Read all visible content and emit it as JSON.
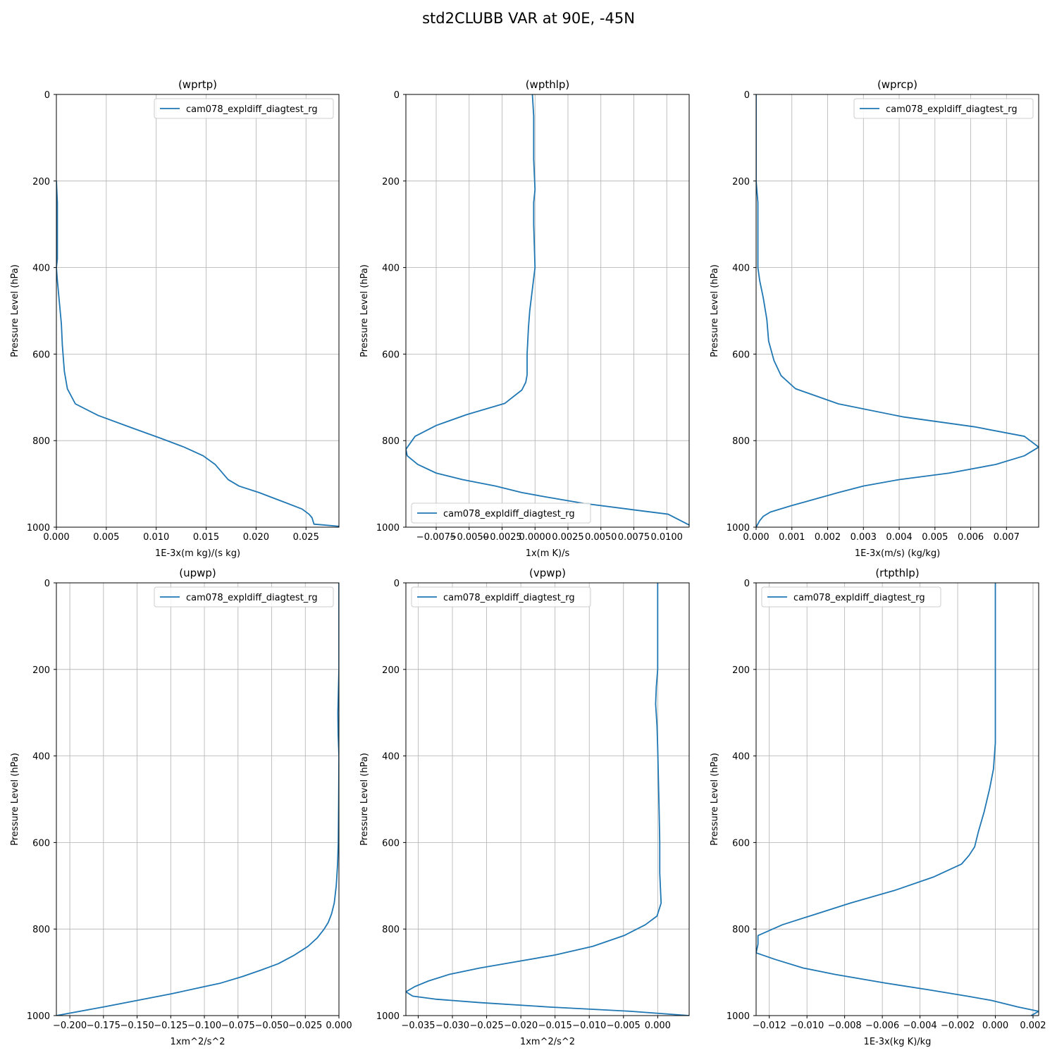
{
  "figure": {
    "title": "std2CLUBB VAR at 90E, -45N"
  },
  "colors": {
    "series": "#1f77b4",
    "grid": "#b0b0b0",
    "axis": "#000000"
  },
  "chart_data": [
    {
      "type": "line",
      "title": "(wprtp)",
      "xlabel": "1E-3x(m kg)/(s kg)",
      "ylabel": "Pressure Level (hPa)",
      "xlim": [
        0,
        0.0283
      ],
      "ylim": [
        1000,
        0
      ],
      "xticks": [
        0,
        0.005,
        0.01,
        0.015,
        0.02,
        0.025
      ],
      "xtick_labels": [
        "0.000",
        "0.005",
        "0.010",
        "0.015",
        "0.020",
        "0.025"
      ],
      "yticks": [
        0,
        200,
        400,
        600,
        800,
        1000
      ],
      "ytick_labels": [
        "0",
        "200",
        "400",
        "600",
        "800",
        "1000"
      ],
      "grid": true,
      "legend": {
        "position": "upper-right",
        "labels": [
          "cam078_expldiff_diagtest_rg"
        ]
      },
      "series": [
        {
          "name": "cam078_expldiff_diagtest_rg",
          "x": [
            0,
            0.0001,
            0.0001,
            0.0001,
            0.0001,
            0,
            0.0001,
            0.0003,
            0.0005,
            0.0006,
            0.0008,
            0.0011,
            0.0019,
            0.0042,
            0.0075,
            0.0105,
            0.0128,
            0.0147,
            0.0159,
            0.0172,
            0.0183,
            0.0203,
            0.0228,
            0.0246,
            0.0253,
            0.0256,
            0.0258,
            0.0283
          ],
          "y": [
            200,
            250,
            300,
            350,
            380,
            400,
            430,
            480,
            530,
            580,
            640,
            680,
            715,
            742,
            770,
            795,
            815,
            835,
            855,
            890,
            905,
            920,
            942,
            958,
            970,
            978,
            993,
            998
          ]
        }
      ]
    },
    {
      "type": "line",
      "title": "(wpthlp)",
      "xlabel": "1x(m K)/s",
      "ylabel": "Pressure Level (hPa)",
      "xlim": [
        -0.0098,
        0.0117
      ],
      "ylim": [
        1000,
        0
      ],
      "xticks": [
        -0.0075,
        -0.005,
        -0.0025,
        0,
        0.0025,
        0.005,
        0.0075,
        0.01
      ],
      "xtick_labels": [
        "−0.0075",
        "−0.0050",
        "−0.0025",
        "0.0000",
        "0.0025",
        "0.0050",
        "0.0075",
        "0.0100"
      ],
      "yticks": [
        0,
        200,
        400,
        600,
        800,
        1000
      ],
      "ytick_labels": [
        "0",
        "200",
        "400",
        "600",
        "800",
        "1000"
      ],
      "grid": true,
      "legend": {
        "position": "lower-left",
        "labels": [
          "cam078_expldiff_diagtest_rg"
        ]
      },
      "series": [
        {
          "name": "cam078_expldiff_diagtest_rg",
          "x": [
            -0.0002,
            -0.0001,
            -0.0001,
            -0.0001,
            0,
            -0.0001,
            -0.0001,
            0,
            -0.0002,
            -0.0004,
            -0.0005,
            -0.0006,
            -0.0006,
            -0.0007,
            -0.001,
            -0.0023,
            -0.0052,
            -0.0075,
            -0.0091,
            -0.0098,
            -0.0097,
            -0.0089,
            -0.0075,
            -0.0055,
            -0.003,
            -0.001,
            0.0008,
            0.0037,
            0.0075,
            0.0101,
            0.0117
          ],
          "y": [
            0,
            50,
            100,
            150,
            220,
            250,
            300,
            400,
            450,
            500,
            540,
            600,
            648,
            665,
            683,
            714,
            740,
            765,
            790,
            820,
            835,
            855,
            875,
            890,
            905,
            920,
            930,
            945,
            960,
            970,
            995
          ]
        }
      ]
    },
    {
      "type": "line",
      "title": "(wprcp)",
      "xlabel": "1E-3x(m/s) (kg/kg)",
      "ylabel": "Pressure Level (hPa)",
      "xlim": [
        0,
        0.0079
      ],
      "ylim": [
        1000,
        0
      ],
      "xticks": [
        0,
        0.001,
        0.002,
        0.003,
        0.004,
        0.005,
        0.006,
        0.007
      ],
      "xtick_labels": [
        "0.000",
        "0.001",
        "0.002",
        "0.003",
        "0.004",
        "0.005",
        "0.006",
        "0.007"
      ],
      "yticks": [
        0,
        200,
        400,
        600,
        800,
        1000
      ],
      "ytick_labels": [
        "0",
        "200",
        "400",
        "600",
        "800",
        "1000"
      ],
      "grid": true,
      "legend": {
        "position": "upper-right",
        "labels": [
          "cam078_expldiff_diagtest_rg"
        ]
      },
      "series": [
        {
          "name": "cam078_expldiff_diagtest_rg",
          "x": [
            0,
            0,
            5e-05,
            5e-05,
            5e-05,
            5e-05,
            0.0001,
            0.0002,
            0.0003,
            0.00035,
            0.0005,
            0.0007,
            0.0011,
            0.0023,
            0.0041,
            0.0061,
            0.0075,
            0.0079,
            0.0075,
            0.0067,
            0.0054,
            0.004,
            0.003,
            0.0023,
            0.001,
            0.0004,
            0.0002,
            0.0001,
            0
          ],
          "y": [
            0,
            200,
            250,
            300,
            350,
            400,
            430,
            470,
            520,
            570,
            615,
            650,
            680,
            715,
            745,
            768,
            790,
            815,
            835,
            855,
            875,
            890,
            905,
            920,
            950,
            965,
            975,
            985,
            1000
          ]
        }
      ]
    },
    {
      "type": "line",
      "title": "(upwp)",
      "xlabel": "1xm^2/s^2",
      "ylabel": "Pressure Level (hPa)",
      "xlim": [
        -0.21,
        0
      ],
      "ylim": [
        1000,
        0
      ],
      "xticks": [
        -0.2,
        -0.175,
        -0.15,
        -0.125,
        -0.1,
        -0.075,
        -0.05,
        -0.025,
        0
      ],
      "xtick_labels": [
        "−0.200",
        "−0.175",
        "−0.150",
        "−0.125",
        "−0.100",
        "−0.075",
        "−0.050",
        "−0.025",
        "0.000"
      ],
      "yticks": [
        0,
        200,
        400,
        600,
        800,
        1000
      ],
      "ytick_labels": [
        "0",
        "200",
        "400",
        "600",
        "800",
        "1000"
      ],
      "grid": true,
      "legend": {
        "position": "upper-right",
        "labels": [
          "cam078_expldiff_diagtest_rg"
        ]
      },
      "series": [
        {
          "name": "cam078_expldiff_diagtest_rg",
          "x": [
            0,
            0,
            -0.0005,
            -0.0008,
            -0.0006,
            0,
            -0.0002,
            -0.0005,
            -0.001,
            -0.002,
            -0.0035,
            -0.0055,
            -0.008,
            -0.011,
            -0.016,
            -0.023,
            -0.033,
            -0.045,
            -0.058,
            -0.072,
            -0.088,
            -0.103,
            -0.125,
            -0.15,
            -0.175,
            -0.21
          ],
          "y": [
            0,
            200,
            260,
            300,
            350,
            400,
            500,
            600,
            650,
            700,
            740,
            765,
            785,
            800,
            820,
            840,
            860,
            880,
            895,
            910,
            925,
            935,
            950,
            965,
            980,
            1000
          ]
        }
      ]
    },
    {
      "type": "line",
      "title": "(vpwp)",
      "xlabel": "1xm^2/s^2",
      "ylabel": "Pressure Level (hPa)",
      "xlim": [
        -0.0368,
        0.0046
      ],
      "ylim": [
        1000,
        0
      ],
      "xticks": [
        -0.035,
        -0.03,
        -0.025,
        -0.02,
        -0.015,
        -0.01,
        -0.005,
        0
      ],
      "xtick_labels": [
        "−0.035",
        "−0.030",
        "−0.025",
        "−0.020",
        "−0.015",
        "−0.010",
        "−0.005",
        "0.000"
      ],
      "yticks": [
        0,
        200,
        400,
        600,
        800,
        1000
      ],
      "ytick_labels": [
        "0",
        "200",
        "400",
        "600",
        "800",
        "1000"
      ],
      "grid": true,
      "legend": {
        "position": "upper-left",
        "labels": [
          "cam078_expldiff_diagtest_rg"
        ]
      },
      "series": [
        {
          "name": "cam078_expldiff_diagtest_rg",
          "x": [
            0,
            0,
            -0.0002,
            -0.0003,
            -0.0001,
            0,
            0.0001,
            0.0002,
            0.0003,
            0.0003,
            0.0005,
            -0.0001,
            -0.0018,
            -0.0049,
            -0.0095,
            -0.015,
            -0.0205,
            -0.026,
            -0.0305,
            -0.0335,
            -0.0355,
            -0.0368,
            -0.0358,
            -0.0325,
            -0.026,
            -0.016,
            -0.004,
            0.0046
          ],
          "y": [
            0,
            200,
            240,
            280,
            330,
            380,
            450,
            520,
            600,
            670,
            740,
            770,
            790,
            815,
            840,
            860,
            875,
            890,
            905,
            920,
            933,
            945,
            955,
            962,
            970,
            980,
            990,
            1000
          ]
        }
      ]
    },
    {
      "type": "line",
      "title": "(rtpthlp)",
      "xlabel": "1E-3x(kg K)/kg",
      "ylabel": "Pressure Level (hPa)",
      "xlim": [
        -0.0127,
        0.0023
      ],
      "ylim": [
        1000,
        0
      ],
      "xticks": [
        -0.012,
        -0.01,
        -0.008,
        -0.006,
        -0.004,
        -0.002,
        0,
        0.002
      ],
      "xtick_labels": [
        "−0.012",
        "−0.010",
        "−0.008",
        "−0.006",
        "−0.004",
        "−0.002",
        "0.000",
        "0.002"
      ],
      "yticks": [
        0,
        200,
        400,
        600,
        800,
        1000
      ],
      "ytick_labels": [
        "0",
        "200",
        "400",
        "600",
        "800",
        "1000"
      ],
      "grid": true,
      "legend": {
        "position": "upper-left",
        "labels": [
          "cam078_expldiff_diagtest_rg"
        ]
      },
      "series": [
        {
          "name": "cam078_expldiff_diagtest_rg",
          "x": [
            0,
            0,
            -0.0001,
            -0.0003,
            -0.0006,
            -0.0009,
            -0.0011,
            -0.0014,
            -0.0018,
            -0.0033,
            -0.0053,
            -0.0077,
            -0.0095,
            -0.0113,
            -0.0126,
            -0.0126,
            -0.0127,
            -0.0117,
            -0.0102,
            -0.0085,
            -0.0058,
            -0.0036,
            -0.0015,
            -0.0002,
            0.0012,
            0.0023,
            0.0019
          ],
          "y": [
            0,
            370,
            430,
            475,
            530,
            575,
            610,
            630,
            650,
            680,
            710,
            740,
            765,
            790,
            815,
            835,
            855,
            870,
            890,
            905,
            925,
            940,
            955,
            965,
            980,
            990,
            1000
          ]
        }
      ]
    }
  ]
}
